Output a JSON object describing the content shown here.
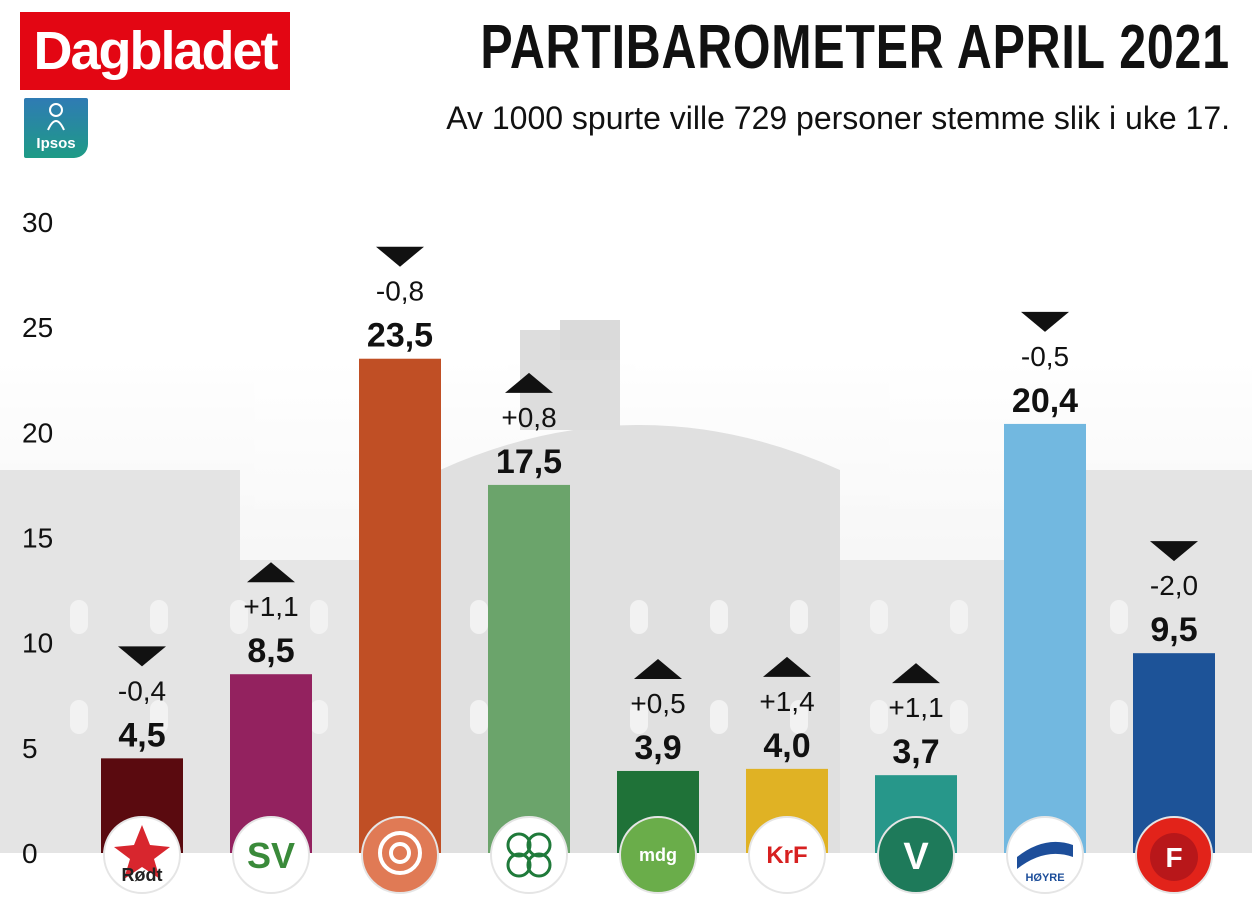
{
  "brand": {
    "name": "Dagbladet",
    "color": "#e30613"
  },
  "source_logo": {
    "name": "Ipsos"
  },
  "title": "PARTIBAROMETER APRIL  2021",
  "subtitle": "Av 1000 spurte ville 729 personer stemme slik i uke 17.",
  "chart_data": {
    "type": "bar",
    "title": "PARTIBAROMETER APRIL  2021",
    "subtitle": "Av 1000 spurte ville 729 personer stemme slik i uke 17.",
    "xlabel": "",
    "ylabel": "",
    "ylim": [
      0,
      30
    ],
    "yticks": [
      "0",
      "5",
      "10",
      "15",
      "20",
      "25",
      "30"
    ],
    "grid": false,
    "legend": "none",
    "categories": [
      "Rødt",
      "SV",
      "Ap",
      "Sp",
      "MDG",
      "KrF",
      "V",
      "Høyre",
      "FrP"
    ],
    "values": [
      4.5,
      8.5,
      23.5,
      17.5,
      3.9,
      4.0,
      3.7,
      20.4,
      9.5
    ],
    "value_labels": [
      "4,5",
      "8,5",
      "23,5",
      "17,5",
      "3,9",
      "4,0",
      "3,7",
      "20,4",
      "9,5"
    ],
    "changes": [
      -0.4,
      1.1,
      -0.8,
      0.8,
      0.5,
      1.4,
      1.1,
      -0.5,
      -2.0
    ],
    "change_labels": [
      "-0,4",
      "+1,1",
      "-0,8",
      "+0,8",
      "+0,5",
      "+1,4",
      "+1,1",
      "-0,5",
      "-2,0"
    ],
    "colors": [
      "#5a0a0f",
      "#93225f",
      "#c04f25",
      "#6ba46b",
      "#1f7238",
      "#e0b224",
      "#27978a",
      "#72b8e0",
      "#1d5398"
    ],
    "party_logos": [
      {
        "icon": "rodt-star-icon",
        "text": "Rødt",
        "bg": "#ffffff",
        "fg": "#222222"
      },
      {
        "icon": "sv-logo-icon",
        "text": "SV",
        "bg": "#ffffff",
        "fg": "#3a8a3a"
      },
      {
        "icon": "ap-rose-icon",
        "text": "",
        "bg": "#e07a55",
        "fg": "#ffffff"
      },
      {
        "icon": "sp-clover-icon",
        "text": "",
        "bg": "#ffffff",
        "fg": "#1f7a3a"
      },
      {
        "icon": "mdg-logo-icon",
        "text": "mdg",
        "bg": "#6aad4a",
        "fg": "#ffffff"
      },
      {
        "icon": "krf-logo-icon",
        "text": "KrF",
        "bg": "#ffffff",
        "fg": "#d72020"
      },
      {
        "icon": "venstre-v-icon",
        "text": "V",
        "bg": "#1e7a5a",
        "fg": "#ffffff"
      },
      {
        "icon": "hoyre-flag-icon",
        "text": "HØYRE",
        "bg": "#ffffff",
        "fg": "#1d4e9a"
      },
      {
        "icon": "frp-apple-icon",
        "text": "F",
        "bg": "#e2231a",
        "fg": "#ffffff"
      }
    ]
  }
}
